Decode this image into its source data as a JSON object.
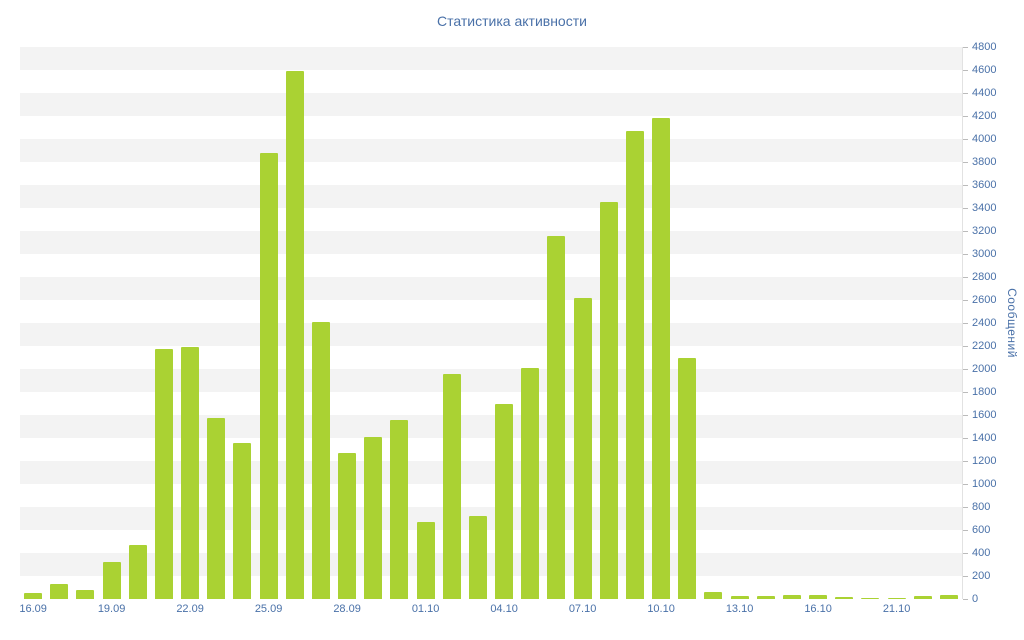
{
  "chart_data": {
    "type": "bar",
    "title": "Статистика активности",
    "xlabel": "",
    "ylabel": "Сообщений",
    "ylim": [
      0,
      4800
    ],
    "y_tick_step": 200,
    "x_tick_labels": [
      "16.09",
      "19.09",
      "22.09",
      "25.09",
      "28.09",
      "01.10",
      "04.10",
      "07.10",
      "10.10",
      "13.10",
      "16.10",
      "21.10"
    ],
    "x_label_every_n_bars": 3,
    "values": [
      55,
      130,
      80,
      325,
      470,
      2175,
      2190,
      1575,
      1360,
      3880,
      4590,
      2410,
      1270,
      1410,
      1560,
      670,
      1955,
      720,
      1695,
      2010,
      3160,
      2620,
      3455,
      4070,
      4185,
      2100,
      65,
      25,
      30,
      35,
      35,
      15,
      10,
      10,
      30,
      35
    ],
    "grid": "horizontal-stripes",
    "legend": "none",
    "y_axis_side": "right",
    "colors": {
      "bar": "#aad233",
      "title": "#4a71a8",
      "axis_labels": "#4a71a8",
      "stripe": "#f3f3f3",
      "background": "#ffffff",
      "tick": "#bbbbbb"
    }
  }
}
